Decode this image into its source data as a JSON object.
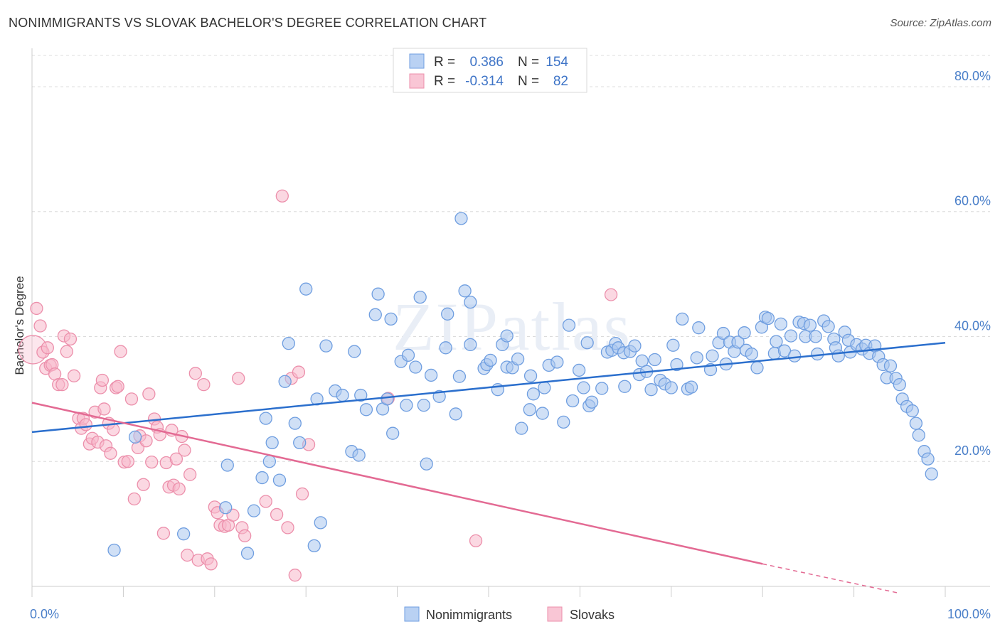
{
  "title": "NONIMMIGRANTS VS SLOVAK BACHELOR'S DEGREE CORRELATION CHART",
  "source": "Source: ZipAtlas.com",
  "watermark": "ZIPatlas",
  "colors": {
    "blue_fill": "#a9c6ee",
    "blue_stroke": "#6f9ee0",
    "blue_line": "#2b6fcd",
    "pink_fill": "#f7b8cb",
    "pink_stroke": "#ec8fab",
    "pink_line": "#e36a93",
    "tick_text": "#4a7fc9",
    "grid": "#dcdcdc"
  },
  "chart_data": {
    "type": "scatter",
    "xlabel": "",
    "ylabel": "Bachelor's Degree",
    "xlim": [
      0,
      100
    ],
    "ylim": [
      0,
      85
    ],
    "x_tick_labels": [
      "0.0%",
      "100.0%"
    ],
    "y_ticks": [
      20,
      40,
      60,
      80
    ],
    "y_tick_labels": [
      "20.0%",
      "40.0%",
      "60.0%",
      "80.0%"
    ],
    "grid": true,
    "legend": {
      "rows": [
        {
          "r_label": "R =",
          "r_value": "0.386",
          "n_label": "N =",
          "n_value": "154"
        },
        {
          "r_label": "R =",
          "r_value": "-0.314",
          "n_label": "N =",
          "n_value": "82"
        }
      ],
      "bottom": [
        "Nonimmigrants",
        "Slovaks"
      ]
    },
    "series": [
      {
        "name": "Nonimmigrants",
        "r": 0.386,
        "n": 154,
        "trend": {
          "x0": 0,
          "y0": 24.7,
          "x1": 100,
          "y1": 39.0
        },
        "points": [
          [
            9.0,
            5.8
          ],
          [
            11.3,
            23.9
          ],
          [
            16.6,
            8.4
          ],
          [
            21.2,
            12.6
          ],
          [
            21.4,
            19.4
          ],
          [
            23.6,
            5.3
          ],
          [
            24.3,
            12.1
          ],
          [
            25.2,
            17.4
          ],
          [
            25.6,
            26.9
          ],
          [
            26.0,
            20.0
          ],
          [
            26.3,
            23.0
          ],
          [
            27.1,
            17.0
          ],
          [
            27.7,
            32.8
          ],
          [
            28.1,
            38.9
          ],
          [
            28.8,
            26.1
          ],
          [
            29.3,
            23.0
          ],
          [
            30.0,
            47.6
          ],
          [
            30.9,
            6.5
          ],
          [
            31.2,
            30.0
          ],
          [
            31.6,
            10.2
          ],
          [
            32.2,
            38.5
          ],
          [
            33.2,
            31.3
          ],
          [
            34.0,
            30.6
          ],
          [
            35.0,
            21.6
          ],
          [
            35.3,
            37.6
          ],
          [
            35.8,
            21.0
          ],
          [
            36.0,
            30.6
          ],
          [
            36.6,
            28.3
          ],
          [
            37.6,
            43.5
          ],
          [
            37.9,
            46.8
          ],
          [
            38.4,
            28.4
          ],
          [
            38.9,
            30.0
          ],
          [
            39.3,
            42.8
          ],
          [
            39.5,
            24.5
          ],
          [
            40.4,
            36.0
          ],
          [
            41.0,
            29.0
          ],
          [
            41.2,
            37.0
          ],
          [
            42.0,
            35.1
          ],
          [
            42.5,
            46.3
          ],
          [
            42.9,
            29.0
          ],
          [
            43.2,
            19.6
          ],
          [
            43.7,
            33.8
          ],
          [
            44.6,
            30.4
          ],
          [
            45.3,
            38.2
          ],
          [
            45.5,
            43.6
          ],
          [
            46.4,
            27.6
          ],
          [
            46.8,
            33.6
          ],
          [
            47.0,
            58.9
          ],
          [
            47.4,
            47.3
          ],
          [
            48.0,
            45.5
          ],
          [
            48.0,
            38.7
          ],
          [
            49.5,
            34.9
          ],
          [
            49.8,
            35.5
          ],
          [
            50.2,
            36.2
          ],
          [
            51.0,
            31.5
          ],
          [
            51.5,
            38.7
          ],
          [
            52.0,
            35.1
          ],
          [
            52.0,
            40.1
          ],
          [
            52.6,
            35.0
          ],
          [
            53.2,
            36.4
          ],
          [
            53.6,
            25.3
          ],
          [
            54.5,
            28.3
          ],
          [
            54.6,
            33.7
          ],
          [
            54.9,
            30.8
          ],
          [
            55.9,
            27.7
          ],
          [
            56.1,
            31.8
          ],
          [
            56.6,
            35.4
          ],
          [
            57.5,
            35.9
          ],
          [
            58.2,
            26.3
          ],
          [
            58.8,
            41.8
          ],
          [
            59.2,
            29.7
          ],
          [
            59.9,
            34.6
          ],
          [
            60.4,
            31.8
          ],
          [
            60.8,
            39.0
          ],
          [
            61.0,
            28.9
          ],
          [
            61.3,
            29.5
          ],
          [
            62.4,
            31.7
          ],
          [
            63.0,
            37.5
          ],
          [
            63.5,
            37.8
          ],
          [
            63.9,
            38.9
          ],
          [
            64.2,
            38.2
          ],
          [
            64.8,
            37.4
          ],
          [
            64.9,
            32.0
          ],
          [
            65.5,
            37.6
          ],
          [
            66.0,
            38.5
          ],
          [
            66.5,
            33.9
          ],
          [
            66.8,
            36.1
          ],
          [
            67.3,
            34.4
          ],
          [
            67.8,
            31.5
          ],
          [
            68.2,
            36.3
          ],
          [
            68.8,
            33.0
          ],
          [
            69.3,
            32.4
          ],
          [
            70.0,
            31.8
          ],
          [
            70.2,
            38.6
          ],
          [
            70.6,
            35.5
          ],
          [
            71.2,
            42.8
          ],
          [
            71.8,
            31.6
          ],
          [
            72.2,
            31.9
          ],
          [
            72.8,
            36.6
          ],
          [
            73.0,
            41.4
          ],
          [
            74.3,
            34.7
          ],
          [
            74.5,
            36.9
          ],
          [
            75.2,
            39.0
          ],
          [
            75.7,
            40.5
          ],
          [
            76.0,
            35.6
          ],
          [
            76.4,
            39.1
          ],
          [
            76.9,
            37.6
          ],
          [
            77.3,
            39.1
          ],
          [
            78.0,
            40.6
          ],
          [
            78.2,
            37.8
          ],
          [
            78.8,
            37.2
          ],
          [
            79.4,
            35.0
          ],
          [
            79.9,
            41.5
          ],
          [
            80.3,
            43.1
          ],
          [
            80.6,
            42.9
          ],
          [
            81.3,
            37.3
          ],
          [
            81.5,
            39.2
          ],
          [
            82.0,
            42.0
          ],
          [
            82.4,
            37.7
          ],
          [
            83.1,
            40.1
          ],
          [
            83.5,
            36.9
          ],
          [
            84.0,
            42.3
          ],
          [
            84.5,
            42.1
          ],
          [
            84.7,
            40.0
          ],
          [
            85.2,
            41.8
          ],
          [
            85.8,
            40.0
          ],
          [
            86.0,
            37.2
          ],
          [
            86.7,
            42.5
          ],
          [
            87.2,
            41.6
          ],
          [
            87.8,
            39.6
          ],
          [
            88.0,
            38.2
          ],
          [
            88.3,
            36.9
          ],
          [
            89.0,
            40.7
          ],
          [
            89.4,
            39.4
          ],
          [
            89.6,
            37.5
          ],
          [
            90.3,
            38.7
          ],
          [
            90.9,
            38.0
          ],
          [
            91.3,
            38.6
          ],
          [
            91.7,
            37.3
          ],
          [
            92.3,
            38.5
          ],
          [
            92.7,
            36.8
          ],
          [
            93.2,
            35.5
          ],
          [
            93.6,
            33.4
          ],
          [
            94.0,
            35.3
          ],
          [
            94.6,
            33.3
          ],
          [
            95.0,
            32.3
          ],
          [
            95.3,
            30.0
          ],
          [
            95.8,
            28.8
          ],
          [
            96.4,
            28.1
          ],
          [
            96.8,
            26.1
          ],
          [
            97.1,
            24.2
          ],
          [
            97.7,
            21.6
          ],
          [
            98.1,
            20.4
          ],
          [
            98.5,
            18.0
          ]
        ]
      },
      {
        "name": "Slovaks",
        "r": -0.314,
        "n": 82,
        "trend": {
          "x0": 0,
          "y0": 29.4,
          "x1": 80,
          "y1": 3.6,
          "dash_x1": 95,
          "dash_y1": -1.1
        },
        "points": [
          [
            0.1,
            37.9
          ],
          [
            0.5,
            44.5
          ],
          [
            0.9,
            41.7
          ],
          [
            1.2,
            37.5
          ],
          [
            1.5,
            34.9
          ],
          [
            1.7,
            38.2
          ],
          [
            2.0,
            35.4
          ],
          [
            2.2,
            35.5
          ],
          [
            2.5,
            34.0
          ],
          [
            2.9,
            32.3
          ],
          [
            3.3,
            32.3
          ],
          [
            3.5,
            40.1
          ],
          [
            3.8,
            37.6
          ],
          [
            4.2,
            39.6
          ],
          [
            4.6,
            33.7
          ],
          [
            5.1,
            26.9
          ],
          [
            5.4,
            25.3
          ],
          [
            5.6,
            26.9
          ],
          [
            5.9,
            25.9
          ],
          [
            6.3,
            22.8
          ],
          [
            6.6,
            23.7
          ],
          [
            6.9,
            27.9
          ],
          [
            7.2,
            23.1
          ],
          [
            7.5,
            31.8
          ],
          [
            7.7,
            33.0
          ],
          [
            7.9,
            28.4
          ],
          [
            8.1,
            22.5
          ],
          [
            8.4,
            26.1
          ],
          [
            8.6,
            21.3
          ],
          [
            8.9,
            25.1
          ],
          [
            9.2,
            31.8
          ],
          [
            9.4,
            32.0
          ],
          [
            9.7,
            37.6
          ],
          [
            10.1,
            19.9
          ],
          [
            10.5,
            20.0
          ],
          [
            10.9,
            30.0
          ],
          [
            11.2,
            14.0
          ],
          [
            11.6,
            22.2
          ],
          [
            11.8,
            24.1
          ],
          [
            12.2,
            16.3
          ],
          [
            12.5,
            23.3
          ],
          [
            12.8,
            30.8
          ],
          [
            13.1,
            19.9
          ],
          [
            13.4,
            26.8
          ],
          [
            13.7,
            25.5
          ],
          [
            14.0,
            24.3
          ],
          [
            14.4,
            8.5
          ],
          [
            14.7,
            19.8
          ],
          [
            15.0,
            15.9
          ],
          [
            15.3,
            25.0
          ],
          [
            15.5,
            16.2
          ],
          [
            15.8,
            20.4
          ],
          [
            16.1,
            15.6
          ],
          [
            16.4,
            24.0
          ],
          [
            16.7,
            21.8
          ],
          [
            17.0,
            5.0
          ],
          [
            17.3,
            17.9
          ],
          [
            17.9,
            34.1
          ],
          [
            18.2,
            4.2
          ],
          [
            18.8,
            32.3
          ],
          [
            19.2,
            4.4
          ],
          [
            19.6,
            3.6
          ],
          [
            20.0,
            12.7
          ],
          [
            20.3,
            11.8
          ],
          [
            20.6,
            9.8
          ],
          [
            21.1,
            9.6
          ],
          [
            21.5,
            9.8
          ],
          [
            22.0,
            11.4
          ],
          [
            22.6,
            33.3
          ],
          [
            23.0,
            9.4
          ],
          [
            23.3,
            8.1
          ],
          [
            25.6,
            13.6
          ],
          [
            26.8,
            11.5
          ],
          [
            27.4,
            62.5
          ],
          [
            28.0,
            9.4
          ],
          [
            28.4,
            33.3
          ],
          [
            28.8,
            1.8
          ],
          [
            29.2,
            34.3
          ],
          [
            29.6,
            14.8
          ],
          [
            30.3,
            22.7
          ],
          [
            39.0,
            30.1
          ],
          [
            48.6,
            7.3
          ],
          [
            63.4,
            46.7
          ]
        ]
      }
    ]
  }
}
